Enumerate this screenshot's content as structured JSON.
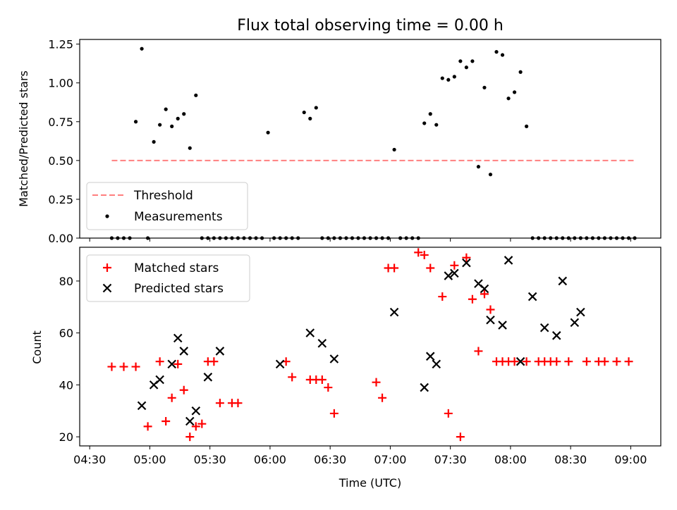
{
  "colors": {
    "threshold": "#ff7f7f",
    "measurements": "#000000",
    "matched": "#ff0000",
    "predicted": "#000000"
  },
  "chart_data": [
    {
      "type": "scatter",
      "title": "Flux total observing time = 0.00 h",
      "xlabel": "",
      "ylabel": "Matched/Predicted stars",
      "xlim": [
        "04:25",
        "09:15"
      ],
      "ylim": [
        0,
        1.28
      ],
      "yticks": [
        "0.00",
        "0.25",
        "0.50",
        "0.75",
        "1.00",
        "1.25"
      ],
      "legend": {
        "position": "lower-left",
        "entries": [
          "Threshold",
          "Measurements"
        ]
      },
      "series": [
        {
          "name": "Threshold",
          "style": "dashed-line",
          "x": [
            "04:41",
            "09:02"
          ],
          "y": [
            0.5,
            0.5
          ]
        },
        {
          "name": "Measurements",
          "style": "dot",
          "x": [
            "04:41",
            "04:44",
            "04:47",
            "04:50",
            "04:53",
            "04:56",
            "04:59",
            "05:02",
            "05:05",
            "05:08",
            "05:11",
            "05:14",
            "05:17",
            "05:20",
            "05:23",
            "05:26",
            "05:29",
            "05:32",
            "05:35",
            "05:38",
            "05:41",
            "05:44",
            "05:47",
            "05:50",
            "05:53",
            "05:56",
            "05:59",
            "06:02",
            "06:05",
            "06:08",
            "06:11",
            "06:14",
            "06:17",
            "06:20",
            "06:23",
            "06:26",
            "06:29",
            "06:32",
            "06:35",
            "06:38",
            "06:41",
            "06:44",
            "06:47",
            "06:50",
            "06:53",
            "06:56",
            "06:59",
            "07:02",
            "07:05",
            "07:08",
            "07:11",
            "07:14",
            "07:17",
            "07:20",
            "07:23",
            "07:26",
            "07:29",
            "07:32",
            "07:35",
            "07:38",
            "07:41",
            "07:44",
            "07:47",
            "07:50",
            "07:53",
            "07:56",
            "07:59",
            "08:02",
            "08:05",
            "08:08",
            "08:11",
            "08:14",
            "08:17",
            "08:20",
            "08:23",
            "08:26",
            "08:29",
            "08:32",
            "08:35",
            "08:38",
            "08:41",
            "08:44",
            "08:47",
            "08:50",
            "08:53",
            "08:56",
            "08:59",
            "09:02"
          ],
          "y": [
            0.0,
            0.0,
            0.0,
            0.0,
            0.75,
            1.22,
            0.0,
            0.62,
            0.73,
            0.83,
            0.72,
            0.77,
            0.8,
            0.58,
            0.92,
            0.0,
            0.0,
            0.0,
            0.0,
            0.0,
            0.0,
            0.0,
            0.0,
            0.0,
            0.0,
            0.0,
            0.68,
            0.0,
            0.0,
            0.0,
            0.0,
            0.0,
            0.81,
            0.77,
            0.84,
            0.0,
            0.0,
            0.0,
            0.0,
            0.0,
            0.0,
            0.0,
            0.0,
            0.0,
            0.0,
            0.0,
            0.0,
            0.57,
            0.0,
            0.0,
            0.0,
            0.0,
            0.74,
            0.8,
            0.73,
            1.03,
            1.02,
            1.04,
            1.14,
            1.1,
            1.14,
            0.46,
            0.97,
            0.41,
            1.2,
            1.18,
            0.9,
            0.94,
            1.07,
            0.72,
            0.0,
            0.0,
            0.0,
            0.0,
            0.0,
            0.0,
            0.0,
            0.0,
            0.0,
            0.0,
            0.0,
            0.0,
            0.0,
            0.0,
            0.0,
            0.0,
            0.0,
            0.0
          ]
        }
      ]
    },
    {
      "type": "scatter",
      "title": "",
      "xlabel": "Time (UTC)",
      "ylabel": "Count",
      "xlim": [
        "04:25",
        "09:15"
      ],
      "ylim": [
        16.5,
        93
      ],
      "xticks": [
        "04:30",
        "05:00",
        "05:30",
        "06:00",
        "06:30",
        "07:00",
        "07:30",
        "08:00",
        "08:30",
        "09:00"
      ],
      "yticks": [
        "20",
        "40",
        "60",
        "80"
      ],
      "legend": {
        "position": "top-left",
        "entries": [
          "Matched stars",
          "Predicted stars"
        ]
      },
      "series": [
        {
          "name": "Matched stars",
          "style": "plus",
          "x": [
            "04:41",
            "04:47",
            "04:53",
            "04:59",
            "05:05",
            "05:08",
            "05:11",
            "05:14",
            "05:17",
            "05:20",
            "05:23",
            "05:26",
            "05:29",
            "05:32",
            "05:35",
            "05:41",
            "05:44",
            "06:08",
            "06:11",
            "06:20",
            "06:23",
            "06:26",
            "06:29",
            "06:32",
            "06:53",
            "06:56",
            "06:59",
            "07:02",
            "07:14",
            "07:17",
            "07:20",
            "07:26",
            "07:29",
            "07:32",
            "07:35",
            "07:38",
            "07:41",
            "07:44",
            "07:47",
            "07:50",
            "07:53",
            "07:56",
            "07:59",
            "08:02",
            "08:08",
            "08:14",
            "08:17",
            "08:20",
            "08:23",
            "08:29",
            "08:38",
            "08:44",
            "08:47",
            "08:53",
            "08:59"
          ],
          "y": [
            47,
            47,
            47,
            24,
            49,
            26,
            35,
            48,
            38,
            20,
            24,
            25,
            49,
            49,
            33,
            33,
            33,
            49,
            43,
            42,
            42,
            42,
            39,
            29,
            41,
            35,
            85,
            85,
            91,
            90,
            85,
            74,
            29,
            86,
            20,
            89,
            73,
            53,
            75,
            69,
            49,
            49,
            49,
            49,
            49,
            49,
            49,
            49,
            49,
            49,
            49,
            49,
            49,
            49,
            49
          ]
        },
        {
          "name": "Predicted stars",
          "style": "x",
          "x": [
            "04:56",
            "05:02",
            "05:05",
            "05:11",
            "05:14",
            "05:17",
            "05:20",
            "05:23",
            "05:29",
            "05:35",
            "06:05",
            "06:20",
            "06:26",
            "06:32",
            "07:02",
            "07:17",
            "07:20",
            "07:23",
            "07:29",
            "07:32",
            "07:38",
            "07:44",
            "07:47",
            "07:50",
            "07:56",
            "07:59",
            "08:05",
            "08:11",
            "08:17",
            "08:23",
            "08:26",
            "08:32",
            "08:35"
          ],
          "y": [
            32,
            40,
            42,
            48,
            58,
            53,
            26,
            30,
            43,
            53,
            48,
            60,
            56,
            50,
            68,
            39,
            51,
            48,
            82,
            83,
            87,
            79,
            77,
            65,
            63,
            88,
            49,
            74,
            62,
            59,
            80,
            64,
            68
          ]
        }
      ]
    }
  ]
}
